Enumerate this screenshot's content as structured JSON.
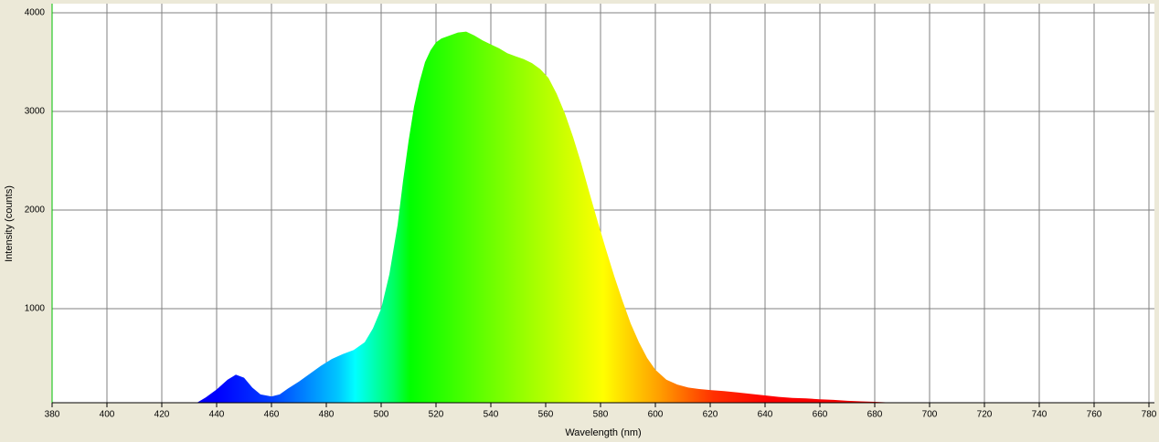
{
  "chart_data": {
    "type": "area",
    "x_label": "Wavelength (nm)",
    "y_label": "Intensity (counts)",
    "x": [
      433,
      436,
      440,
      444,
      447,
      450,
      453,
      456,
      460,
      463,
      466,
      470,
      474,
      478,
      482,
      486,
      490,
      494,
      497,
      500,
      503,
      506,
      508,
      510,
      512,
      514,
      516,
      518,
      520,
      522,
      525,
      528,
      531,
      534,
      537,
      540,
      543,
      546,
      549,
      552,
      555,
      558,
      561,
      564,
      567,
      570,
      573,
      576,
      579,
      582,
      585,
      588,
      591,
      594,
      597,
      600,
      604,
      608,
      612,
      616,
      620,
      625,
      630,
      635,
      640,
      645,
      650,
      655,
      660,
      665,
      670,
      675,
      680,
      685
    ],
    "values": [
      50,
      100,
      180,
      280,
      330,
      300,
      200,
      130,
      110,
      130,
      190,
      260,
      340,
      420,
      490,
      540,
      580,
      660,
      800,
      1000,
      1350,
      1850,
      2300,
      2700,
      3050,
      3300,
      3500,
      3620,
      3700,
      3740,
      3770,
      3800,
      3810,
      3770,
      3720,
      3680,
      3640,
      3590,
      3560,
      3530,
      3490,
      3430,
      3340,
      3180,
      2980,
      2740,
      2470,
      2170,
      1880,
      1600,
      1330,
      1080,
      850,
      660,
      500,
      380,
      280,
      230,
      200,
      185,
      175,
      165,
      150,
      135,
      120,
      105,
      95,
      90,
      80,
      75,
      65,
      60,
      55,
      50
    ],
    "xlim": [
      380,
      782
    ],
    "ylim": [
      46,
      4093
    ],
    "xticks": [
      380,
      400,
      420,
      440,
      460,
      480,
      500,
      520,
      540,
      560,
      580,
      600,
      620,
      640,
      660,
      680,
      700,
      720,
      740,
      760,
      780
    ],
    "yticks": [
      1000,
      2000,
      3000,
      4000
    ],
    "grid": true
  }
}
